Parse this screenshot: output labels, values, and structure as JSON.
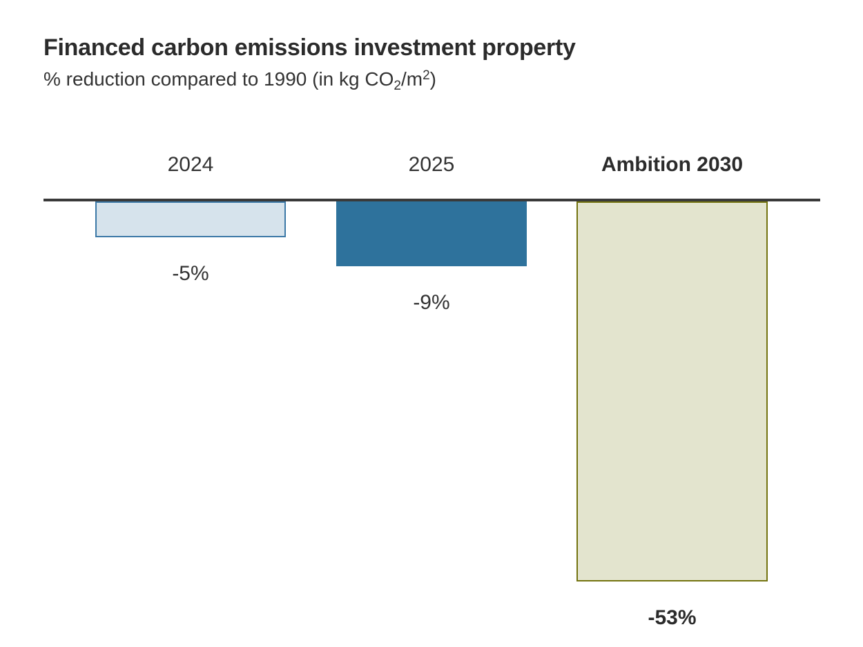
{
  "page": {
    "background": "#ffffff"
  },
  "header": {
    "title": "Financed carbon emissions investment property",
    "subtitle": {
      "pre": "% reduction compared to 1990 (in kg CO",
      "sub": "2",
      "mid": "/m",
      "sup": "2",
      "post": ")"
    }
  },
  "chart_data": {
    "type": "bar",
    "title": "Financed carbon emissions investment property",
    "subtitle": "% reduction compared to 1990 (in kg CO2/m2)",
    "orientation": "vertical-negative",
    "baseline_value": 0,
    "unit": "%",
    "categories": [
      "2024",
      "2025",
      "Ambition 2030"
    ],
    "values": [
      -5,
      -9,
      -53
    ],
    "axis_color": "#3a3a3a",
    "text_color": "#333333",
    "bars": [
      {
        "category": "2024",
        "value": -5,
        "value_label": "-5%",
        "fill": "#d6e3ec",
        "border": "#3b78a6",
        "bold": false
      },
      {
        "category": "2025",
        "value": -9,
        "value_label": "-9%",
        "fill": "#2e729c",
        "border": "#2e729c",
        "bold": false
      },
      {
        "category": "Ambition 2030",
        "value": -53,
        "value_label": "-53%",
        "fill": "#e3e4ce",
        "border": "#73730f",
        "bold": true
      }
    ]
  }
}
